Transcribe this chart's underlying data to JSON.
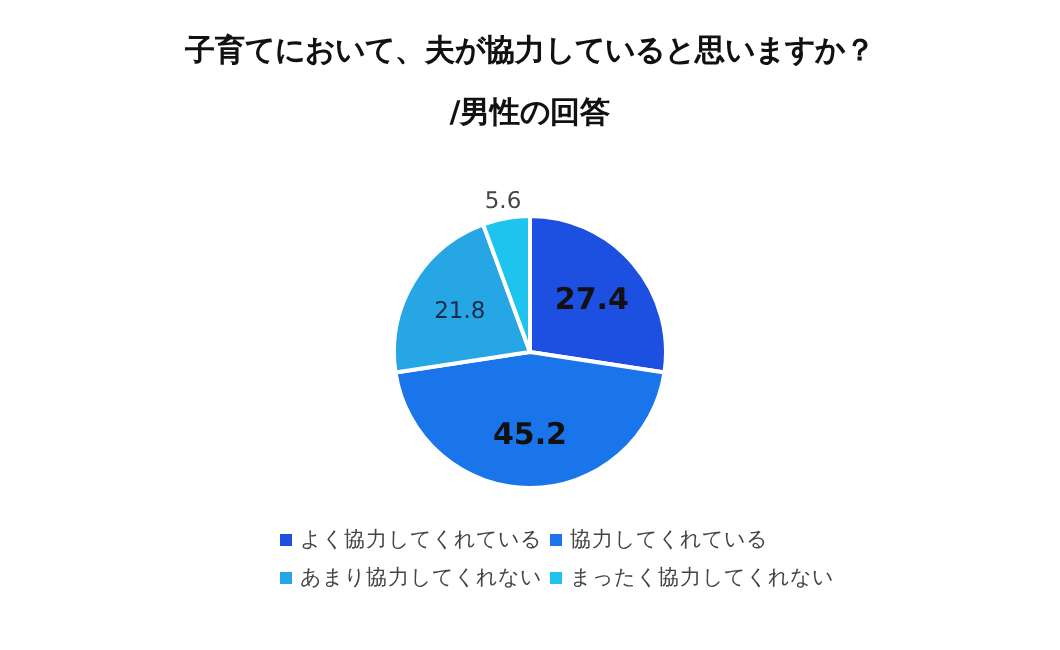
{
  "chart_data": {
    "type": "pie",
    "title": "子育てにおいて、夫が協力していると思いますか？",
    "subtitle": "/男性の回答",
    "categories": [
      "よく協力してくれている",
      "協力してくれている",
      "あまり協力してくれない",
      "まったく協力してくれない"
    ],
    "values": [
      27.4,
      45.2,
      21.8,
      5.6
    ],
    "colors": [
      "#1d4fe0",
      "#1a74ea",
      "#27a6e6",
      "#1ec3ee"
    ],
    "data_labels": true,
    "legend": "bottom"
  }
}
